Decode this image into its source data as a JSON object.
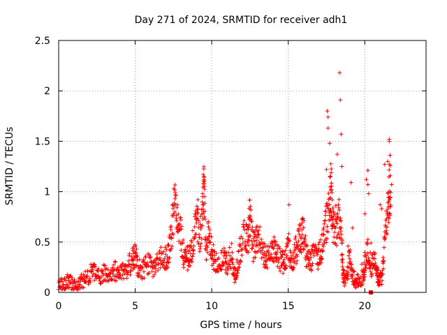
{
  "chart_data": {
    "type": "scatter",
    "title": "Day 271 of 2024, SRMTID for receiver adh1",
    "xlabel": "GPS time / hours",
    "ylabel": "SRMTID / TECUs",
    "xlim": [
      0,
      24
    ],
    "ylim": [
      0,
      2.5
    ],
    "x_ticks": [
      0,
      5,
      10,
      15,
      20
    ],
    "y_ticks": [
      0,
      0.5,
      1,
      1.5,
      2,
      2.5
    ],
    "x_tick_labels": [
      "0",
      "5",
      "10",
      "15",
      "20"
    ],
    "y_tick_labels": [
      "0",
      "0.5",
      "1",
      "1.5",
      "2",
      "2.5"
    ],
    "grid": true,
    "marker": "plus",
    "series_color": "#ff0000",
    "trend": [
      [
        0.0,
        0.08
      ],
      [
        0.3,
        0.07
      ],
      [
        0.6,
        0.12
      ],
      [
        0.9,
        0.08
      ],
      [
        1.2,
        0.06
      ],
      [
        1.5,
        0.11
      ],
      [
        1.8,
        0.14
      ],
      [
        2.1,
        0.19
      ],
      [
        2.4,
        0.2
      ],
      [
        2.7,
        0.17
      ],
      [
        3.0,
        0.19
      ],
      [
        3.3,
        0.18
      ],
      [
        3.6,
        0.22
      ],
      [
        3.9,
        0.2
      ],
      [
        4.2,
        0.22
      ],
      [
        4.5,
        0.24
      ],
      [
        4.8,
        0.32
      ],
      [
        5.0,
        0.38
      ],
      [
        5.2,
        0.24
      ],
      [
        5.5,
        0.22
      ],
      [
        5.8,
        0.28
      ],
      [
        6.1,
        0.25
      ],
      [
        6.4,
        0.3
      ],
      [
        6.7,
        0.35
      ],
      [
        7.0,
        0.33
      ],
      [
        7.2,
        0.4
      ],
      [
        7.4,
        0.65
      ],
      [
        7.6,
        0.9
      ],
      [
        7.8,
        0.7
      ],
      [
        8.0,
        0.55
      ],
      [
        8.2,
        0.3
      ],
      [
        8.4,
        0.33
      ],
      [
        8.6,
        0.4
      ],
      [
        8.8,
        0.48
      ],
      [
        9.0,
        0.8
      ],
      [
        9.2,
        0.55
      ],
      [
        9.4,
        0.75
      ],
      [
        9.5,
        1.1
      ],
      [
        9.6,
        0.4
      ],
      [
        9.8,
        0.6
      ],
      [
        10.0,
        0.42
      ],
      [
        10.2,
        0.3
      ],
      [
        10.5,
        0.3
      ],
      [
        10.8,
        0.35
      ],
      [
        11.0,
        0.28
      ],
      [
        11.3,
        0.38
      ],
      [
        11.5,
        0.15
      ],
      [
        11.7,
        0.3
      ],
      [
        11.9,
        0.45
      ],
      [
        12.2,
        0.6
      ],
      [
        12.4,
        0.55
      ],
      [
        12.5,
        0.78
      ],
      [
        12.7,
        0.45
      ],
      [
        12.9,
        0.5
      ],
      [
        13.1,
        0.55
      ],
      [
        13.4,
        0.4
      ],
      [
        13.6,
        0.32
      ],
      [
        13.9,
        0.45
      ],
      [
        14.1,
        0.45
      ],
      [
        14.3,
        0.35
      ],
      [
        14.6,
        0.3
      ],
      [
        14.8,
        0.3
      ],
      [
        15.0,
        0.5
      ],
      [
        15.2,
        0.28
      ],
      [
        15.4,
        0.4
      ],
      [
        15.6,
        0.45
      ],
      [
        15.8,
        0.55
      ],
      [
        16.0,
        0.62
      ],
      [
        16.2,
        0.35
      ],
      [
        16.4,
        0.32
      ],
      [
        16.6,
        0.35
      ],
      [
        16.9,
        0.35
      ],
      [
        17.1,
        0.4
      ],
      [
        17.3,
        0.55
      ],
      [
        17.5,
        0.7
      ],
      [
        17.7,
        0.9
      ],
      [
        17.8,
        1.05
      ],
      [
        17.9,
        0.65
      ],
      [
        18.1,
        0.6
      ],
      [
        18.3,
        0.8
      ],
      [
        18.5,
        0.45
      ],
      [
        18.6,
        0.15
      ],
      [
        18.8,
        0.12
      ],
      [
        19.0,
        0.35
      ],
      [
        19.2,
        0.15
      ],
      [
        19.4,
        0.12
      ],
      [
        19.6,
        0.12
      ],
      [
        19.9,
        0.15
      ],
      [
        20.0,
        0.3
      ],
      [
        20.2,
        0.45
      ],
      [
        20.4,
        0.25
      ],
      [
        20.6,
        0.35
      ],
      [
        20.8,
        0.2
      ],
      [
        20.9,
        0.12
      ],
      [
        21.1,
        0.12
      ],
      [
        21.3,
        0.45
      ],
      [
        21.5,
        0.8
      ],
      [
        21.6,
        1.0
      ],
      [
        21.7,
        1.1
      ]
    ],
    "spikes": [
      [
        4.9,
        0.45
      ],
      [
        7.6,
        0.93
      ],
      [
        9.1,
        0.92
      ],
      [
        9.45,
        1.17
      ],
      [
        9.5,
        1.12
      ],
      [
        12.55,
        0.82
      ],
      [
        14.6,
        0.41
      ],
      [
        15.05,
        0.87
      ],
      [
        15.9,
        0.69
      ],
      [
        17.35,
        0.68
      ],
      [
        17.5,
        1.22
      ],
      [
        17.55,
        1.8
      ],
      [
        17.6,
        1.74
      ],
      [
        17.6,
        1.63
      ],
      [
        17.7,
        1.48
      ],
      [
        17.8,
        1.02
      ],
      [
        18.1,
        0.86
      ],
      [
        18.2,
        1.37
      ],
      [
        18.35,
        2.18
      ],
      [
        18.4,
        1.91
      ],
      [
        18.45,
        1.57
      ],
      [
        18.5,
        1.25
      ],
      [
        18.5,
        0.32
      ],
      [
        18.9,
        0.46
      ],
      [
        19.1,
        1.09
      ],
      [
        19.2,
        0.64
      ],
      [
        19.8,
        0.28
      ],
      [
        20.0,
        0.78
      ],
      [
        20.1,
        1.12
      ],
      [
        20.2,
        1.21
      ],
      [
        20.2,
        1.07
      ],
      [
        20.25,
        0.98
      ],
      [
        20.4,
        0.49
      ],
      [
        20.8,
        0.17
      ],
      [
        21.0,
        0.87
      ],
      [
        21.1,
        0.83
      ],
      [
        21.3,
        1.27
      ],
      [
        21.5,
        1.3
      ],
      [
        21.6,
        1.52
      ],
      [
        21.6,
        1.5
      ],
      [
        21.65,
        1.36
      ],
      [
        21.75,
        1.07
      ]
    ],
    "annotations": [
      {
        "kind": "square-marker",
        "x": 20.4,
        "y": 0.0
      }
    ]
  }
}
